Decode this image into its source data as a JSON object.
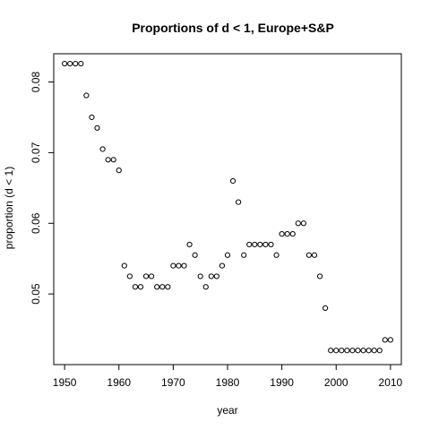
{
  "chart_data": {
    "type": "scatter",
    "title": "Proportions of d < 1, Europe+S&P",
    "xlabel": "year",
    "ylabel": "proportion (d < 1)",
    "xlim": [
      1948,
      2012
    ],
    "ylim": [
      0.04,
      0.084
    ],
    "xticks": [
      1950,
      1960,
      1970,
      1980,
      1990,
      2000,
      2010
    ],
    "yticks": [
      0.05,
      0.06,
      0.07,
      0.08
    ],
    "ytick_labels": [
      "0.05",
      "0.06",
      "0.07",
      "0.08"
    ],
    "grid": false,
    "marker": "open-circle",
    "points": [
      {
        "x": 1950,
        "y": 0.0826
      },
      {
        "x": 1951,
        "y": 0.0826
      },
      {
        "x": 1952,
        "y": 0.0826
      },
      {
        "x": 1953,
        "y": 0.0826
      },
      {
        "x": 1954,
        "y": 0.0781
      },
      {
        "x": 1955,
        "y": 0.075
      },
      {
        "x": 1956,
        "y": 0.0735
      },
      {
        "x": 1957,
        "y": 0.0705
      },
      {
        "x": 1958,
        "y": 0.069
      },
      {
        "x": 1959,
        "y": 0.069
      },
      {
        "x": 1960,
        "y": 0.0675
      },
      {
        "x": 1961,
        "y": 0.054
      },
      {
        "x": 1962,
        "y": 0.0525
      },
      {
        "x": 1963,
        "y": 0.051
      },
      {
        "x": 1964,
        "y": 0.051
      },
      {
        "x": 1965,
        "y": 0.0525
      },
      {
        "x": 1966,
        "y": 0.0525
      },
      {
        "x": 1967,
        "y": 0.051
      },
      {
        "x": 1968,
        "y": 0.051
      },
      {
        "x": 1969,
        "y": 0.051
      },
      {
        "x": 1970,
        "y": 0.054
      },
      {
        "x": 1971,
        "y": 0.054
      },
      {
        "x": 1972,
        "y": 0.054
      },
      {
        "x": 1973,
        "y": 0.057
      },
      {
        "x": 1974,
        "y": 0.0555
      },
      {
        "x": 1975,
        "y": 0.0525
      },
      {
        "x": 1976,
        "y": 0.051
      },
      {
        "x": 1977,
        "y": 0.0525
      },
      {
        "x": 1978,
        "y": 0.0525
      },
      {
        "x": 1979,
        "y": 0.054
      },
      {
        "x": 1980,
        "y": 0.0555
      },
      {
        "x": 1981,
        "y": 0.066
      },
      {
        "x": 1982,
        "y": 0.063
      },
      {
        "x": 1983,
        "y": 0.0555
      },
      {
        "x": 1984,
        "y": 0.057
      },
      {
        "x": 1985,
        "y": 0.057
      },
      {
        "x": 1986,
        "y": 0.057
      },
      {
        "x": 1987,
        "y": 0.057
      },
      {
        "x": 1988,
        "y": 0.057
      },
      {
        "x": 1989,
        "y": 0.0555
      },
      {
        "x": 1990,
        "y": 0.0585
      },
      {
        "x": 1991,
        "y": 0.0585
      },
      {
        "x": 1992,
        "y": 0.0585
      },
      {
        "x": 1993,
        "y": 0.06
      },
      {
        "x": 1994,
        "y": 0.06
      },
      {
        "x": 1995,
        "y": 0.0555
      },
      {
        "x": 1996,
        "y": 0.0555
      },
      {
        "x": 1997,
        "y": 0.0525
      },
      {
        "x": 1998,
        "y": 0.048
      },
      {
        "x": 1999,
        "y": 0.042
      },
      {
        "x": 2000,
        "y": 0.042
      },
      {
        "x": 2001,
        "y": 0.042
      },
      {
        "x": 2002,
        "y": 0.042
      },
      {
        "x": 2003,
        "y": 0.042
      },
      {
        "x": 2004,
        "y": 0.042
      },
      {
        "x": 2005,
        "y": 0.042
      },
      {
        "x": 2006,
        "y": 0.042
      },
      {
        "x": 2007,
        "y": 0.042
      },
      {
        "x": 2008,
        "y": 0.042
      },
      {
        "x": 2009,
        "y": 0.0435
      },
      {
        "x": 2010,
        "y": 0.0435
      }
    ]
  }
}
